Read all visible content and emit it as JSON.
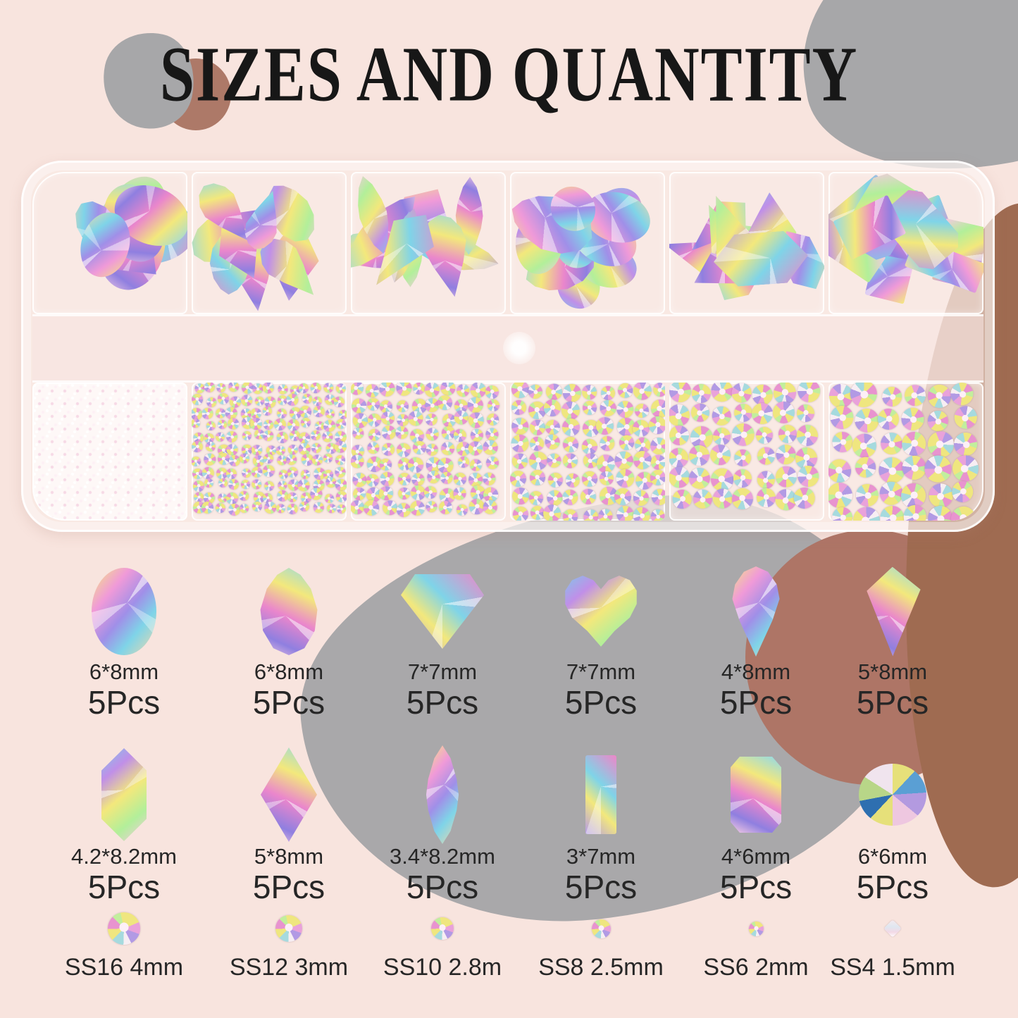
{
  "title": "SIZES AND QUANTITY",
  "colors": {
    "background": "#f8e4de",
    "gray_blob": "#a7a7a9",
    "brown_blob": "#ad7968",
    "rosy_brown_blob": "#ae7566",
    "dark_brown_blob": "#9f6b51",
    "text": "#262626",
    "crystal_palette": [
      "#f4e97e",
      "#f09ad8",
      "#a08fe8",
      "#7fd4e8",
      "#ea86cc",
      "#b2ef9a"
    ]
  },
  "shaped_gems": [
    {
      "shape": "oval",
      "size": "6*8mm",
      "qty": "5Pcs"
    },
    {
      "shape": "pear",
      "size": "6*8mm",
      "qty": "5Pcs"
    },
    {
      "shape": "diamond",
      "size": "7*7mm",
      "qty": "5Pcs"
    },
    {
      "shape": "heart",
      "size": "7*7mm",
      "qty": "5Pcs"
    },
    {
      "shape": "drop",
      "size": "4*8mm",
      "qty": "5Pcs"
    },
    {
      "shape": "kite",
      "size": "5*8mm",
      "qty": "5Pcs"
    },
    {
      "shape": "hexagon",
      "size": "4.2*8.2mm",
      "qty": "5Pcs"
    },
    {
      "shape": "rhombus",
      "size": "5*8mm",
      "qty": "5Pcs"
    },
    {
      "shape": "marquise",
      "size": "3.4*8.2mm",
      "qty": "5Pcs"
    },
    {
      "shape": "baguette",
      "size": "3*7mm",
      "qty": "5Pcs"
    },
    {
      "shape": "emerald",
      "size": "4*6mm",
      "qty": "5Pcs"
    },
    {
      "shape": "roundcut",
      "size": "6*6mm",
      "qty": "5Pcs"
    }
  ],
  "round_gems": [
    {
      "label": "SS16 4mm"
    },
    {
      "label": "SS12 3mm"
    },
    {
      "label": "SS10 2.8m"
    },
    {
      "label": "SS8 2.5mm"
    },
    {
      "label": "SS6 2mm"
    },
    {
      "label": "SS4 1.5mm"
    }
  ],
  "case": {
    "top_compartments": [
      [
        "oval",
        "pear",
        "diamond",
        "kite"
      ],
      [
        "pear",
        "rhombus",
        "drop"
      ],
      [
        "marquise",
        "kite",
        "drop"
      ],
      [
        "pear",
        "oval",
        "roundcut"
      ],
      [
        "hexagon",
        "rhombus",
        "kite"
      ],
      [
        "emerald",
        "baguette",
        "rect"
      ]
    ],
    "bottom_compartments": [
      {
        "type": "micro",
        "dot": 0
      },
      {
        "type": "round",
        "dot": 15
      },
      {
        "type": "round",
        "dot": 19
      },
      {
        "type": "round",
        "dot": 23
      },
      {
        "type": "round",
        "dot": 28
      },
      {
        "type": "round",
        "dot": 33
      }
    ]
  }
}
